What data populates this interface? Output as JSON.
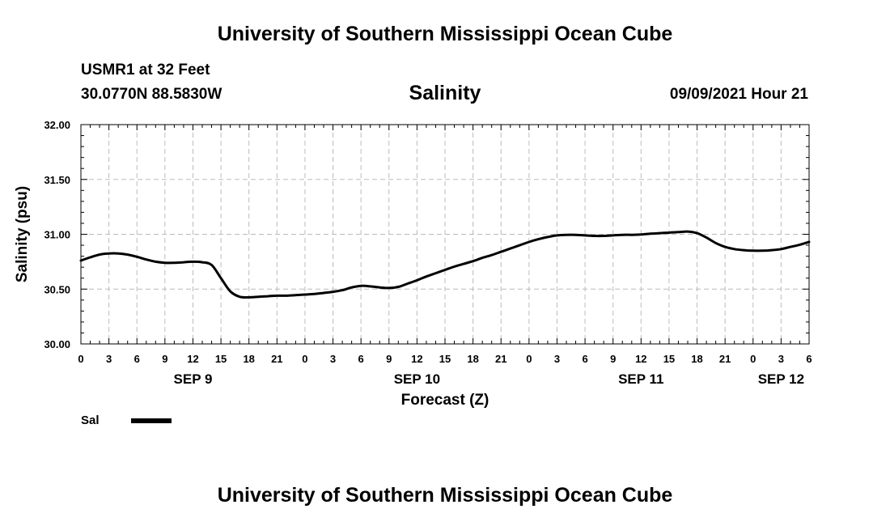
{
  "header": {
    "title": "University of Southern Mississippi Ocean Cube",
    "station": "USMR1 at 32 Feet",
    "coords": "30.0770N  88.5830W",
    "variable": "Salinity",
    "datetime": "09/09/2021 Hour 21"
  },
  "footer": {
    "title": "University of Southern Mississippi Ocean Cube"
  },
  "chart_data": {
    "type": "line",
    "title": "Salinity",
    "xlabel": "Forecast (Z)",
    "ylabel": "Salinity (psu)",
    "ylim": [
      30.0,
      32.0
    ],
    "xlim_hours": [
      0,
      78
    ],
    "yticks": [
      "30.00",
      "30.50",
      "31.00",
      "31.50",
      "32.00"
    ],
    "yticks_values": [
      30.0,
      30.5,
      31.0,
      31.5,
      32.0
    ],
    "xticks": [
      "0",
      "3",
      "6",
      "9",
      "12",
      "15",
      "18",
      "21",
      "0",
      "3",
      "6",
      "9",
      "12",
      "15",
      "18",
      "21",
      "0",
      "3",
      "6",
      "9",
      "12",
      "15",
      "18",
      "21",
      "0",
      "3",
      "6"
    ],
    "day_labels": [
      {
        "label": "SEP 9",
        "hour": 12
      },
      {
        "label": "SEP 10",
        "hour": 36
      },
      {
        "label": "SEP 11",
        "hour": 60
      },
      {
        "label": "SEP 12",
        "hour": 75
      }
    ],
    "grid": true,
    "legend": [
      {
        "name": "Sal",
        "color": "#000000"
      }
    ],
    "series": [
      {
        "name": "Sal",
        "color": "#000000",
        "x": [
          0,
          1,
          2,
          3,
          4,
          5,
          6,
          7,
          8,
          9,
          10,
          11,
          12,
          13,
          14,
          15,
          16,
          17,
          18,
          19,
          20,
          21,
          22,
          23,
          24,
          25,
          26,
          27,
          28,
          29,
          30,
          31,
          32,
          33,
          34,
          35,
          36,
          37,
          38,
          39,
          40,
          41,
          42,
          43,
          44,
          45,
          46,
          47,
          48,
          49,
          50,
          51,
          52,
          53,
          54,
          55,
          56,
          57,
          58,
          59,
          60,
          61,
          62,
          63,
          64,
          65,
          66,
          67,
          68,
          69,
          70,
          71,
          72,
          73,
          74,
          75,
          76,
          77,
          78
        ],
        "y": [
          30.76,
          30.79,
          30.815,
          30.825,
          30.825,
          30.815,
          30.795,
          30.77,
          30.75,
          30.74,
          30.74,
          30.745,
          30.75,
          30.745,
          30.72,
          30.6,
          30.48,
          30.43,
          30.425,
          30.43,
          30.435,
          30.44,
          30.44,
          30.445,
          30.45,
          30.455,
          30.465,
          30.475,
          30.49,
          30.515,
          30.53,
          30.525,
          30.515,
          30.51,
          30.52,
          30.55,
          30.58,
          30.615,
          30.645,
          30.675,
          30.705,
          30.73,
          30.755,
          30.785,
          30.81,
          30.84,
          30.87,
          30.9,
          30.93,
          30.955,
          30.975,
          30.99,
          30.995,
          30.995,
          30.99,
          30.985,
          30.985,
          30.99,
          30.995,
          30.995,
          30.998,
          31.005,
          31.01,
          31.015,
          31.02,
          31.025,
          31.01,
          30.97,
          30.92,
          30.885,
          30.865,
          30.855,
          30.85,
          30.85,
          30.855,
          30.865,
          30.885,
          30.905,
          30.93
        ]
      }
    ]
  }
}
